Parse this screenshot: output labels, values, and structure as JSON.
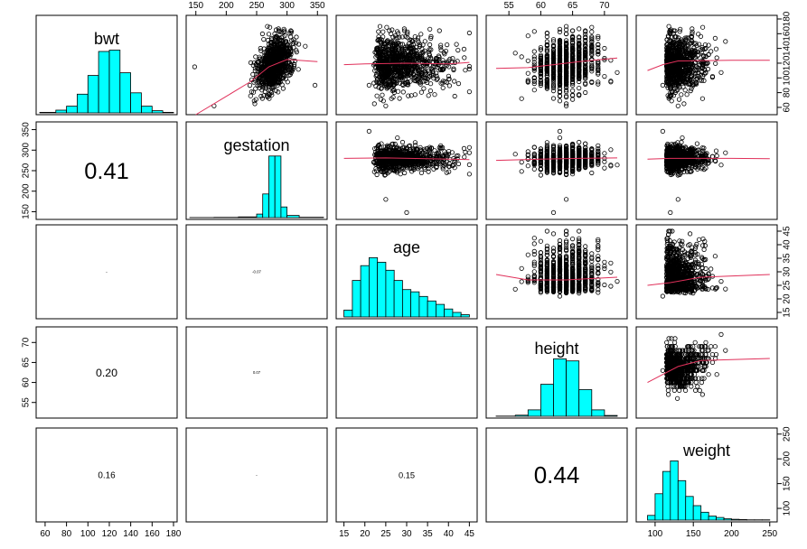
{
  "chart_data": {
    "type": "scatter-matrix",
    "variables": [
      {
        "name": "bwt",
        "ticks": [
          60,
          80,
          100,
          120,
          140,
          160,
          180
        ]
      },
      {
        "name": "gestation",
        "ticks": [
          150,
          200,
          250,
          300,
          350
        ]
      },
      {
        "name": "age",
        "ticks": [
          15,
          20,
          25,
          30,
          35,
          40,
          45
        ]
      },
      {
        "name": "height",
        "ticks": [
          55,
          60,
          65,
          70
        ]
      },
      {
        "name": "weight",
        "ticks": [
          100,
          150,
          200,
          250
        ]
      }
    ],
    "ranges": [
      [
        55,
        180
      ],
      [
        140,
        360
      ],
      [
        14,
        46
      ],
      [
        52,
        73
      ],
      [
        80,
        255
      ]
    ],
    "correlations": [
      {
        "row": 1,
        "col": 0,
        "label": "0.41"
      },
      {
        "row": 2,
        "col": 0,
        "label": "-"
      },
      {
        "row": 2,
        "col": 1,
        "label": "-0.07"
      },
      {
        "row": 3,
        "col": 0,
        "label": "0.20"
      },
      {
        "row": 3,
        "col": 1,
        "label": "0.07"
      },
      {
        "row": 3,
        "col": 2,
        "label": ""
      },
      {
        "row": 4,
        "col": 0,
        "label": "0.16"
      },
      {
        "row": 4,
        "col": 1,
        "label": "-"
      },
      {
        "row": 4,
        "col": 2,
        "label": "0.15"
      },
      {
        "row": 4,
        "col": 3,
        "label": "0.44"
      }
    ],
    "histograms": [
      {
        "edges": [
          55,
          70,
          80,
          90,
          100,
          110,
          120,
          130,
          140,
          150,
          160,
          170,
          180
        ],
        "counts": [
          2,
          10,
          25,
          70,
          140,
          230,
          235,
          150,
          75,
          25,
          8,
          2
        ]
      },
      {
        "edges": [
          140,
          180,
          220,
          250,
          260,
          270,
          280,
          290,
          300,
          320,
          360
        ],
        "counts": [
          1,
          2,
          6,
          30,
          200,
          520,
          520,
          90,
          18,
          3
        ]
      },
      {
        "edges": [
          15,
          17,
          19,
          21,
          23,
          25,
          27,
          29,
          31,
          33,
          35,
          37,
          39,
          41,
          43,
          45
        ],
        "counts": [
          30,
          160,
          225,
          260,
          240,
          205,
          160,
          120,
          110,
          90,
          70,
          55,
          35,
          20,
          10
        ]
      },
      {
        "edges": [
          53,
          56,
          58,
          60,
          62,
          64,
          66,
          68,
          70,
          72
        ],
        "counts": [
          2,
          10,
          60,
          300,
          540,
          520,
          250,
          60,
          8
        ]
      },
      {
        "edges": [
          90,
          100,
          110,
          120,
          130,
          140,
          150,
          160,
          170,
          180,
          190,
          200,
          210,
          220,
          230,
          240,
          250
        ],
        "counts": [
          18,
          100,
          185,
          225,
          150,
          90,
          55,
          30,
          15,
          10,
          5,
          3,
          2,
          1,
          1,
          1
        ]
      }
    ],
    "lowess": {
      "0,1": [
        [
          150,
          40
        ],
        [
          200,
          75
        ],
        [
          240,
          95
        ],
        [
          270,
          115
        ],
        [
          300,
          125
        ],
        [
          350,
          122
        ]
      ],
      "0,2": [
        [
          15,
          118
        ],
        [
          20,
          119
        ],
        [
          30,
          120
        ],
        [
          40,
          119
        ],
        [
          45,
          121
        ]
      ],
      "0,3": [
        [
          53,
          113
        ],
        [
          58,
          114
        ],
        [
          62,
          118
        ],
        [
          66,
          122
        ],
        [
          72,
          127
        ]
      ],
      "0,4": [
        [
          90,
          110
        ],
        [
          110,
          118
        ],
        [
          130,
          123
        ],
        [
          200,
          124
        ],
        [
          250,
          124
        ]
      ],
      "1,2": [
        [
          15,
          280
        ],
        [
          25,
          281
        ],
        [
          35,
          279
        ],
        [
          45,
          277
        ]
      ],
      "1,3": [
        [
          53,
          275
        ],
        [
          60,
          278
        ],
        [
          66,
          280
        ],
        [
          72,
          281
        ]
      ],
      "1,4": [
        [
          90,
          278
        ],
        [
          120,
          280
        ],
        [
          200,
          280
        ],
        [
          250,
          279
        ]
      ],
      "2,3": [
        [
          53,
          29
        ],
        [
          58,
          27
        ],
        [
          64,
          27
        ],
        [
          72,
          28
        ]
      ],
      "2,4": [
        [
          90,
          25
        ],
        [
          120,
          26
        ],
        [
          160,
          28
        ],
        [
          250,
          29
        ]
      ],
      "3,4": [
        [
          90,
          60
        ],
        [
          110,
          62
        ],
        [
          130,
          64
        ],
        [
          160,
          65.5
        ],
        [
          250,
          66
        ]
      ]
    }
  }
}
